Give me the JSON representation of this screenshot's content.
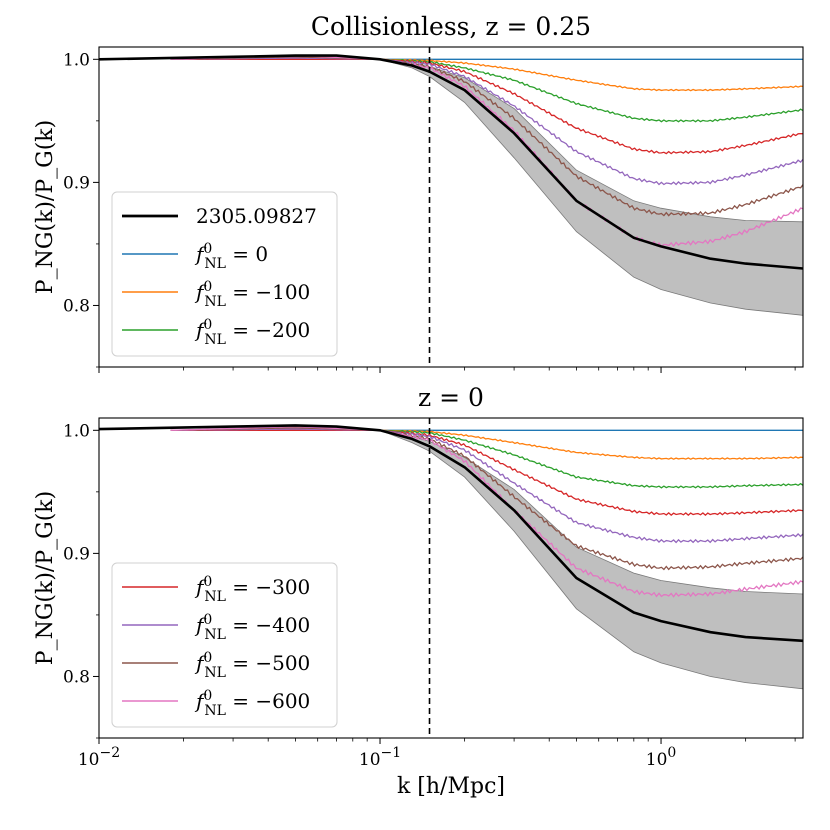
{
  "chart_data": [
    {
      "type": "line",
      "title": "Collisionless, z = 0.25",
      "title_text": "Collisionless, ",
      "title_z": "z = 0.25",
      "xscale": "log",
      "xlim": [
        0.01,
        3.2
      ],
      "ylim": [
        0.75,
        1.01
      ],
      "xlabel": "",
      "ylabel": "P_NG(k)/P_G(k)",
      "yticks": [
        0.8,
        0.9,
        1.0
      ],
      "ytick_labels": [
        "0.8",
        "0.9",
        "1.0"
      ],
      "vline_x": 0.15,
      "legend_position": "lower-left",
      "legend": [
        {
          "label": "2305.09827",
          "color": "#000000"
        },
        {
          "label": "f_NL^0 = 0",
          "color": "#1f77b4",
          "value": "0"
        },
        {
          "label": "f_NL^0 = −100",
          "color": "#ff7f0e",
          "value": "−100"
        },
        {
          "label": "f_NL^0 = −200",
          "color": "#2ca02c",
          "value": "−200"
        }
      ],
      "reference": {
        "name": "2305.09827",
        "x": [
          0.01,
          0.03,
          0.05,
          0.07,
          0.1,
          0.13,
          0.15,
          0.2,
          0.3,
          0.5,
          0.8,
          1.0,
          1.5,
          2.0,
          3.2
        ],
        "y": [
          1.0,
          1.002,
          1.003,
          1.003,
          1.0,
          0.995,
          0.99,
          0.975,
          0.94,
          0.885,
          0.855,
          0.848,
          0.838,
          0.834,
          0.83
        ],
        "band_low": [
          1.0,
          1.002,
          1.003,
          1.003,
          1.0,
          0.993,
          0.986,
          0.965,
          0.92,
          0.86,
          0.823,
          0.813,
          0.802,
          0.797,
          0.792
        ],
        "band_high": [
          1.0,
          1.002,
          1.003,
          1.003,
          1.0,
          0.997,
          0.994,
          0.985,
          0.96,
          0.91,
          0.885,
          0.879,
          0.872,
          0.869,
          0.868
        ]
      },
      "series": [
        {
          "name": "f_NL^0 = 0",
          "color": "#1f77b4",
          "x": [
            0.018,
            3.2
          ],
          "y": [
            1.0,
            1.0
          ]
        },
        {
          "name": "f_NL^0 = −100",
          "color": "#ff7f0e",
          "x": [
            0.018,
            0.05,
            0.1,
            0.15,
            0.2,
            0.3,
            0.5,
            0.8,
            1.0,
            1.5,
            2.0,
            3.2
          ],
          "y": [
            1.0,
            1.0,
            1.0,
            0.999,
            0.997,
            0.992,
            0.983,
            0.976,
            0.975,
            0.975,
            0.976,
            0.978
          ]
        },
        {
          "name": "f_NL^0 = −200",
          "color": "#2ca02c",
          "x": [
            0.018,
            0.05,
            0.1,
            0.15,
            0.2,
            0.3,
            0.5,
            0.8,
            1.0,
            1.5,
            2.0,
            3.2
          ],
          "y": [
            1.0,
            1.0,
            1.0,
            0.998,
            0.993,
            0.983,
            0.964,
            0.952,
            0.95,
            0.95,
            0.953,
            0.959
          ]
        },
        {
          "name": "f_NL^0 = −300",
          "color": "#d62728",
          "x": [
            0.018,
            0.05,
            0.1,
            0.15,
            0.2,
            0.3,
            0.5,
            0.8,
            1.0,
            1.5,
            2.0,
            3.2
          ],
          "y": [
            1.0,
            1.0,
            1.0,
            0.997,
            0.99,
            0.972,
            0.944,
            0.927,
            0.924,
            0.925,
            0.93,
            0.94
          ]
        },
        {
          "name": "f_NL^0 = −400",
          "color": "#9467bd",
          "x": [
            0.018,
            0.05,
            0.1,
            0.15,
            0.2,
            0.3,
            0.5,
            0.8,
            1.0,
            1.5,
            2.0,
            3.2
          ],
          "y": [
            1.0,
            1.001,
            1.0,
            0.996,
            0.986,
            0.962,
            0.925,
            0.903,
            0.899,
            0.9,
            0.906,
            0.918
          ]
        },
        {
          "name": "f_NL^0 = −500",
          "color": "#8c564b",
          "x": [
            0.018,
            0.05,
            0.1,
            0.15,
            0.2,
            0.3,
            0.5,
            0.8,
            1.0,
            1.5,
            2.0,
            3.2
          ],
          "y": [
            1.0,
            1.002,
            1.0,
            0.994,
            0.982,
            0.952,
            0.905,
            0.879,
            0.874,
            0.875,
            0.882,
            0.897
          ]
        },
        {
          "name": "f_NL^0 = −600",
          "color": "#e377c2",
          "x": [
            0.018,
            0.05,
            0.1,
            0.15,
            0.2,
            0.3,
            0.5,
            0.8,
            1.0,
            1.5,
            2.0,
            3.2
          ],
          "y": [
            1.0,
            1.003,
            1.0,
            0.993,
            0.978,
            0.942,
            0.885,
            0.855,
            0.849,
            0.852,
            0.86,
            0.879
          ]
        }
      ]
    },
    {
      "type": "line",
      "title": "z = 0",
      "title_text": "",
      "title_z": "z = 0",
      "xscale": "log",
      "xlim": [
        0.01,
        3.2
      ],
      "ylim": [
        0.75,
        1.01
      ],
      "xlabel": "k [h/Mpc]",
      "ylabel": "P_NG(k)/P_G(k)",
      "yticks": [
        0.8,
        0.9,
        1.0
      ],
      "ytick_labels": [
        "0.8",
        "0.9",
        "1.0"
      ],
      "xticks": [
        0.01,
        0.1,
        1.0
      ],
      "xtick_labels": [
        "10",
        "10",
        "10"
      ],
      "xtick_exponents": [
        "−2",
        "−1",
        "0"
      ],
      "vline_x": 0.15,
      "legend_position": "lower-left",
      "legend": [
        {
          "label": "f_NL^0 = −300",
          "color": "#d62728",
          "value": "−300"
        },
        {
          "label": "f_NL^0 = −400",
          "color": "#9467bd",
          "value": "−400"
        },
        {
          "label": "f_NL^0 = −500",
          "color": "#8c564b",
          "value": "−500"
        },
        {
          "label": "f_NL^0 = −600",
          "color": "#e377c2",
          "value": "−600"
        }
      ],
      "reference": {
        "name": "2305.09827",
        "x": [
          0.01,
          0.03,
          0.05,
          0.07,
          0.1,
          0.13,
          0.15,
          0.2,
          0.3,
          0.5,
          0.8,
          1.0,
          1.5,
          2.0,
          3.2
        ],
        "y": [
          1.001,
          1.003,
          1.004,
          1.003,
          1.0,
          0.993,
          0.987,
          0.97,
          0.935,
          0.88,
          0.852,
          0.845,
          0.836,
          0.832,
          0.829
        ],
        "band_low": [
          1.001,
          1.003,
          1.004,
          1.003,
          1.0,
          0.99,
          0.983,
          0.962,
          0.918,
          0.855,
          0.82,
          0.811,
          0.8,
          0.795,
          0.79
        ],
        "band_high": [
          1.001,
          1.003,
          1.004,
          1.003,
          1.0,
          0.995,
          0.991,
          0.978,
          0.952,
          0.905,
          0.884,
          0.878,
          0.872,
          0.869,
          0.867
        ]
      },
      "series": [
        {
          "name": "f_NL^0 = 0",
          "color": "#1f77b4",
          "x": [
            0.018,
            3.2
          ],
          "y": [
            1.0,
            1.0
          ]
        },
        {
          "name": "f_NL^0 = −100",
          "color": "#ff7f0e",
          "x": [
            0.018,
            0.05,
            0.1,
            0.15,
            0.2,
            0.3,
            0.5,
            0.8,
            1.0,
            1.5,
            2.0,
            3.2
          ],
          "y": [
            1.0,
            1.0,
            1.0,
            0.999,
            0.996,
            0.99,
            0.982,
            0.978,
            0.977,
            0.977,
            0.977,
            0.978
          ]
        },
        {
          "name": "f_NL^0 = −200",
          "color": "#2ca02c",
          "x": [
            0.018,
            0.05,
            0.1,
            0.15,
            0.2,
            0.3,
            0.5,
            0.8,
            1.0,
            1.5,
            2.0,
            3.2
          ],
          "y": [
            1.0,
            1.0,
            1.0,
            0.998,
            0.992,
            0.98,
            0.962,
            0.955,
            0.954,
            0.954,
            0.955,
            0.956
          ]
        },
        {
          "name": "f_NL^0 = −300",
          "color": "#d62728",
          "x": [
            0.018,
            0.05,
            0.1,
            0.15,
            0.2,
            0.3,
            0.5,
            0.8,
            1.0,
            1.5,
            2.0,
            3.2
          ],
          "y": [
            1.0,
            1.0,
            1.0,
            0.996,
            0.988,
            0.968,
            0.944,
            0.934,
            0.932,
            0.932,
            0.933,
            0.935
          ]
        },
        {
          "name": "f_NL^0 = −400",
          "color": "#9467bd",
          "x": [
            0.018,
            0.05,
            0.1,
            0.15,
            0.2,
            0.3,
            0.5,
            0.8,
            1.0,
            1.5,
            2.0,
            3.2
          ],
          "y": [
            1.0,
            1.001,
            1.0,
            0.995,
            0.984,
            0.957,
            0.925,
            0.913,
            0.91,
            0.91,
            0.912,
            0.915
          ]
        },
        {
          "name": "f_NL^0 = −500",
          "color": "#8c564b",
          "x": [
            0.018,
            0.05,
            0.1,
            0.15,
            0.2,
            0.3,
            0.5,
            0.8,
            1.0,
            1.5,
            2.0,
            3.2
          ],
          "y": [
            1.0,
            1.002,
            1.0,
            0.993,
            0.979,
            0.946,
            0.906,
            0.891,
            0.888,
            0.889,
            0.892,
            0.896
          ]
        },
        {
          "name": "f_NL^0 = −600",
          "color": "#e377c2",
          "x": [
            0.018,
            0.05,
            0.1,
            0.15,
            0.2,
            0.3,
            0.5,
            0.8,
            1.0,
            1.5,
            2.0,
            3.2
          ],
          "y": [
            1.0,
            1.003,
            1.0,
            0.992,
            0.975,
            0.935,
            0.888,
            0.869,
            0.866,
            0.867,
            0.871,
            0.877
          ]
        }
      ]
    }
  ]
}
